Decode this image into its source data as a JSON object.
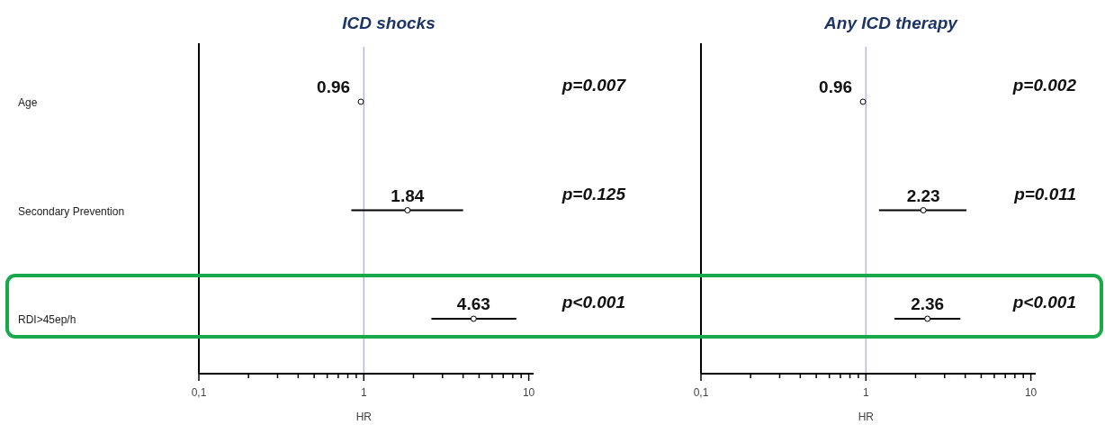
{
  "chart_data": [
    {
      "type": "scatter",
      "orientation": "horizontal",
      "title": "ICD shocks",
      "xlabel": "HR",
      "categories": [
        "Age",
        "Secondary Prevention",
        "RDI>45ep/h"
      ],
      "values": [
        0.96,
        1.84,
        4.63
      ],
      "errors": [
        null,
        [
          0.84,
          4.0
        ],
        [
          2.57,
          8.4
        ]
      ],
      "color": "#000000",
      "marker": "circle",
      "data_labels": true,
      "log": "x",
      "xlim": [
        0.1,
        10.7
      ],
      "xticks": [
        {
          "value": 0.1,
          "label": "0,1"
        },
        {
          "value": 0.2,
          "label": null
        },
        {
          "value": 0.3,
          "label": null
        },
        {
          "value": 0.4,
          "label": null
        },
        {
          "value": 0.5,
          "label": null
        },
        {
          "value": 0.6,
          "label": null
        },
        {
          "value": 0.7,
          "label": null
        },
        {
          "value": 0.8,
          "label": null
        },
        {
          "value": 0.9,
          "label": null
        },
        {
          "value": 1,
          "label": "1"
        },
        {
          "value": 2,
          "label": null
        },
        {
          "value": 3,
          "label": null
        },
        {
          "value": 4,
          "label": null
        },
        {
          "value": 5,
          "label": null
        },
        {
          "value": 6,
          "label": null
        },
        {
          "value": 7,
          "label": null
        },
        {
          "value": 8,
          "label": null
        },
        {
          "value": 9,
          "label": null
        },
        {
          "value": 10,
          "label": "10"
        }
      ],
      "ref_lines": [
        {
          "axis": "x",
          "value": 1,
          "color": "#b8b8dc"
        }
      ],
      "annotations": [
        "p=0.007",
        "p=0.125",
        "p<0.001"
      ]
    },
    {
      "type": "scatter",
      "orientation": "horizontal",
      "title": "Any ICD therapy",
      "xlabel": "HR",
      "categories": [
        null,
        null,
        null
      ],
      "tick_labels": "x",
      "values": [
        0.96,
        2.23,
        2.36
      ],
      "errors": [
        null,
        [
          1.2,
          4.07
        ],
        [
          1.49,
          3.74
        ]
      ],
      "color": "#000000",
      "marker": "circle",
      "data_labels": true,
      "log": "x",
      "xlim": [
        0.1,
        10.7
      ],
      "xticks": [
        {
          "value": 0.1,
          "label": "0,1"
        },
        {
          "value": 0.2,
          "label": null
        },
        {
          "value": 0.3,
          "label": null
        },
        {
          "value": 0.4,
          "label": null
        },
        {
          "value": 0.5,
          "label": null
        },
        {
          "value": 0.6,
          "label": null
        },
        {
          "value": 0.7,
          "label": null
        },
        {
          "value": 0.8,
          "label": null
        },
        {
          "value": 0.9,
          "label": null
        },
        {
          "value": 1,
          "label": "1"
        },
        {
          "value": 2,
          "label": null
        },
        {
          "value": 3,
          "label": null
        },
        {
          "value": 4,
          "label": null
        },
        {
          "value": 5,
          "label": null
        },
        {
          "value": 6,
          "label": null
        },
        {
          "value": 7,
          "label": null
        },
        {
          "value": 8,
          "label": null
        },
        {
          "value": 9,
          "label": null
        },
        {
          "value": 10,
          "label": "10"
        }
      ],
      "ref_lines": [
        {
          "axis": "x",
          "value": 1,
          "color": "#b8b8dc"
        }
      ],
      "annotations": [
        "p=0.002",
        "p=0.011",
        "p<0.001"
      ]
    }
  ]
}
